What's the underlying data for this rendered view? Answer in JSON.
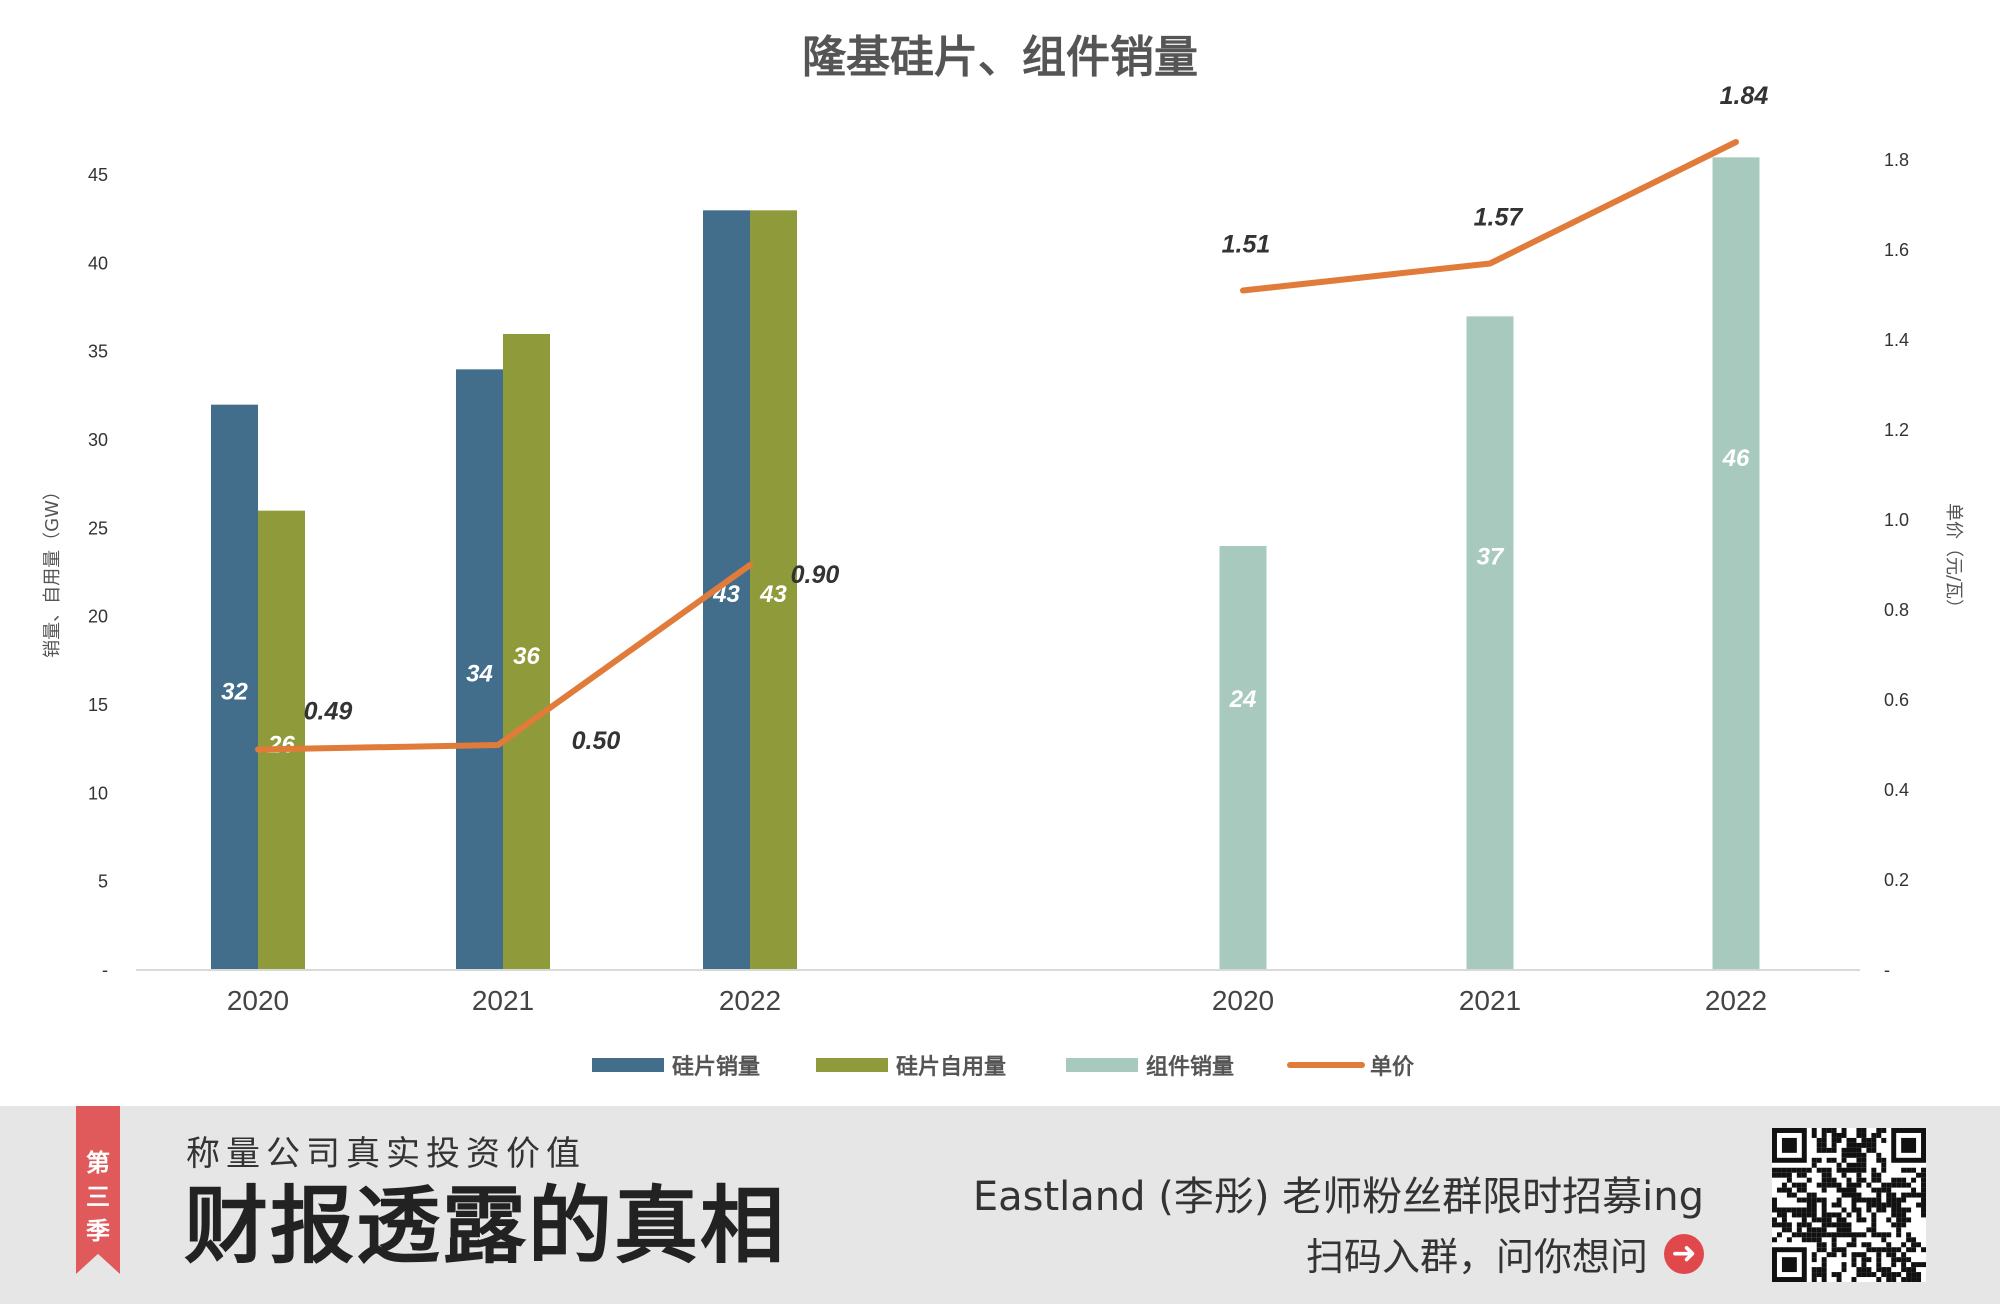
{
  "chart_data": {
    "type": "bar",
    "title": "隆基硅片、组件销量",
    "y_left_label": "销量、自用量（GW）",
    "y_right_label": "单价（元/瓦）",
    "y_left_ticks": [
      "-",
      "5",
      "10",
      "15",
      "20",
      "25",
      "30",
      "35",
      "40",
      "45"
    ],
    "y_right_ticks": [
      "-",
      "0.2",
      "0.4",
      "0.6",
      "0.8",
      "1.0",
      "1.2",
      "1.4",
      "1.6",
      "1.8"
    ],
    "y_left_range": [
      0,
      45
    ],
    "y_right_range": [
      0,
      1.8
    ],
    "legend_position": "bottom",
    "groups": [
      {
        "categories": [
          "2020",
          "2021",
          "2022"
        ],
        "bars": [
          {
            "name": "硅片销量",
            "values": [
              32,
              34,
              43
            ],
            "labels": [
              "32",
              "34",
              "43"
            ],
            "color": "#426e8c"
          },
          {
            "name": "硅片自用量",
            "values": [
              26,
              36,
              43
            ],
            "labels": [
              "26",
              "36",
              "43"
            ],
            "color": "#8f9a3a"
          }
        ],
        "price": {
          "values": [
            0.49,
            0.5,
            0.9
          ],
          "labels": [
            "0.49",
            "0.50",
            "0.90"
          ]
        }
      },
      {
        "categories": [
          "2020",
          "2021",
          "2022"
        ],
        "bars": [
          {
            "name": "组件销量",
            "values": [
              24,
              37,
              46
            ],
            "labels": [
              "24",
              "37",
              "46"
            ],
            "color": "#a8c9be"
          }
        ],
        "price": {
          "values": [
            1.51,
            1.57,
            1.84
          ],
          "labels": [
            "1.51",
            "1.57",
            "1.84"
          ]
        }
      }
    ],
    "legend": [
      {
        "name": "硅片销量",
        "color": "#426e8c",
        "kind": "bar"
      },
      {
        "name": "硅片自用量",
        "color": "#8f9a3a",
        "kind": "bar"
      },
      {
        "name": "组件销量",
        "color": "#a8c9be",
        "kind": "bar"
      },
      {
        "name": "单价",
        "color": "#e07b3a",
        "kind": "line"
      }
    ],
    "line_color": "#e07b3a"
  },
  "banner": {
    "ribbon": "第三季",
    "subtitle": "称量公司真实投资价值",
    "title": "财报透露的真相",
    "promo": "Eastland (李彤) 老师粉丝群限时招募ing",
    "scan": "扫码入群，问你想问"
  }
}
